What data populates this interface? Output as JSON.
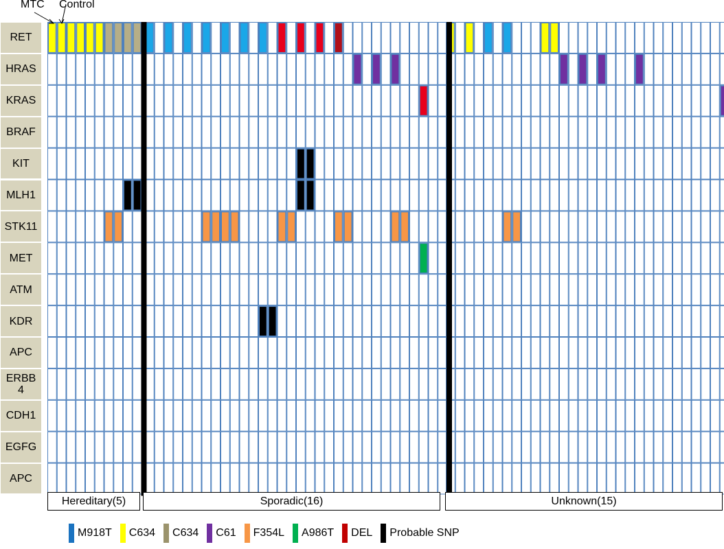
{
  "header": {
    "mtc_label": "MTC",
    "control_label": "Control"
  },
  "genes": [
    "RET",
    "HRAS",
    "KRAS",
    "BRAF",
    "KIT",
    "MLH1",
    "STK11",
    "MET",
    "ATM",
    "KDR",
    "APC",
    "ERBB 4",
    "CDH1",
    "EGFG",
    "APC"
  ],
  "groups": [
    {
      "label": "Hereditary(5)",
      "samples": 5
    },
    {
      "label": "Sporadic(16)",
      "samples": 16
    },
    {
      "label": "Unknown(15)",
      "samples": 15
    }
  ],
  "legend": [
    {
      "label": "M918T",
      "color": "#1b73c0"
    },
    {
      "label": "C634",
      "color": "#ffff00"
    },
    {
      "label": "C634",
      "color": "#9b936c"
    },
    {
      "label": "C61",
      "color": "#7030a0"
    },
    {
      "label": "F354L",
      "color": "#f79646"
    },
    {
      "label": "A986T",
      "color": "#00b050"
    },
    {
      "label": "DEL",
      "color": "#c00000"
    },
    {
      "label": "Probable SNP",
      "color": "#000000"
    }
  ],
  "chart_data": {
    "type": "heatmap",
    "description_note": "",
    "rows": [
      "RET",
      "HRAS",
      "KRAS",
      "BRAF",
      "KIT",
      "MLH1",
      "STK11",
      "MET",
      "ATM",
      "KDR",
      "APC",
      "ERBB4",
      "CDH1",
      "EGFG",
      "APC"
    ],
    "columns_per_sample": [
      "MTC",
      "Control"
    ],
    "cell_colors": {
      "yellow": "#ffff00",
      "khaki": "#b6ae87",
      "blue": "#1aa7e8",
      "red": "#e8001c",
      "darkred": "#b0101a",
      "purple": "#7030a0",
      "orange": "#f79646",
      "green": "#00b050",
      "black": "#000000"
    },
    "mutations": [
      {
        "gene": "RET",
        "group": "Hereditary(5)",
        "sample": 1,
        "columns": "both",
        "color": "yellow"
      },
      {
        "gene": "RET",
        "group": "Hereditary(5)",
        "sample": 2,
        "columns": "both",
        "color": "yellow"
      },
      {
        "gene": "RET",
        "group": "Hereditary(5)",
        "sample": 3,
        "columns": "both",
        "color": "yellow"
      },
      {
        "gene": "RET",
        "group": "Hereditary(5)",
        "sample": 4,
        "columns": "both",
        "color": "khaki"
      },
      {
        "gene": "RET",
        "group": "Hereditary(5)",
        "sample": 5,
        "columns": "both",
        "color": "khaki"
      },
      {
        "gene": "MLH1",
        "group": "Hereditary(5)",
        "sample": 5,
        "columns": "both",
        "color": "black"
      },
      {
        "gene": "STK11",
        "group": "Hereditary(5)",
        "sample": 4,
        "columns": "both",
        "color": "orange"
      },
      {
        "gene": "RET",
        "group": "Sporadic(16)",
        "sample": 1,
        "columns": "mtc",
        "color": "blue"
      },
      {
        "gene": "RET",
        "group": "Sporadic(16)",
        "sample": 2,
        "columns": "mtc",
        "color": "blue"
      },
      {
        "gene": "RET",
        "group": "Sporadic(16)",
        "sample": 3,
        "columns": "mtc",
        "color": "blue"
      },
      {
        "gene": "RET",
        "group": "Sporadic(16)",
        "sample": 4,
        "columns": "mtc",
        "color": "blue"
      },
      {
        "gene": "RET",
        "group": "Sporadic(16)",
        "sample": 5,
        "columns": "mtc",
        "color": "blue"
      },
      {
        "gene": "RET",
        "group": "Sporadic(16)",
        "sample": 6,
        "columns": "mtc",
        "color": "blue"
      },
      {
        "gene": "RET",
        "group": "Sporadic(16)",
        "sample": 7,
        "columns": "mtc",
        "color": "blue"
      },
      {
        "gene": "RET",
        "group": "Sporadic(16)",
        "sample": 8,
        "columns": "mtc",
        "color": "red"
      },
      {
        "gene": "RET",
        "group": "Sporadic(16)",
        "sample": 9,
        "columns": "mtc",
        "color": "red"
      },
      {
        "gene": "RET",
        "group": "Sporadic(16)",
        "sample": 10,
        "columns": "mtc",
        "color": "red"
      },
      {
        "gene": "RET",
        "group": "Sporadic(16)",
        "sample": 11,
        "columns": "mtc",
        "color": "darkred"
      },
      {
        "gene": "HRAS",
        "group": "Sporadic(16)",
        "sample": 12,
        "columns": "mtc",
        "color": "purple"
      },
      {
        "gene": "HRAS",
        "group": "Sporadic(16)",
        "sample": 13,
        "columns": "mtc",
        "color": "purple"
      },
      {
        "gene": "HRAS",
        "group": "Sporadic(16)",
        "sample": 14,
        "columns": "mtc",
        "color": "purple"
      },
      {
        "gene": "KRAS",
        "group": "Sporadic(16)",
        "sample": 15,
        "columns": "control",
        "color": "red"
      },
      {
        "gene": "KIT",
        "group": "Sporadic(16)",
        "sample": 9,
        "columns": "both",
        "color": "black"
      },
      {
        "gene": "MLH1",
        "group": "Sporadic(16)",
        "sample": 9,
        "columns": "both",
        "color": "black"
      },
      {
        "gene": "STK11",
        "group": "Sporadic(16)",
        "sample": 4,
        "columns": "both",
        "color": "orange"
      },
      {
        "gene": "STK11",
        "group": "Sporadic(16)",
        "sample": 5,
        "columns": "both",
        "color": "orange"
      },
      {
        "gene": "STK11",
        "group": "Sporadic(16)",
        "sample": 8,
        "columns": "both",
        "color": "orange"
      },
      {
        "gene": "STK11",
        "group": "Sporadic(16)",
        "sample": 11,
        "columns": "both",
        "color": "orange"
      },
      {
        "gene": "STK11",
        "group": "Sporadic(16)",
        "sample": 14,
        "columns": "both",
        "color": "orange"
      },
      {
        "gene": "MET",
        "group": "Sporadic(16)",
        "sample": 15,
        "columns": "control",
        "color": "green"
      },
      {
        "gene": "KDR",
        "group": "Sporadic(16)",
        "sample": 7,
        "columns": "both",
        "color": "black"
      },
      {
        "gene": "RET",
        "group": "Unknown(15)",
        "sample": 1,
        "columns": "mtc",
        "color": "yellow"
      },
      {
        "gene": "RET",
        "group": "Unknown(15)",
        "sample": 2,
        "columns": "mtc",
        "color": "yellow"
      },
      {
        "gene": "RET",
        "group": "Unknown(15)",
        "sample": 3,
        "columns": "mtc",
        "color": "blue"
      },
      {
        "gene": "RET",
        "group": "Unknown(15)",
        "sample": 4,
        "columns": "mtc",
        "color": "blue"
      },
      {
        "gene": "RET",
        "group": "Unknown(15)",
        "sample": 6,
        "columns": "both",
        "color": "yellow"
      },
      {
        "gene": "HRAS",
        "group": "Unknown(15)",
        "sample": 7,
        "columns": "mtc",
        "color": "purple"
      },
      {
        "gene": "HRAS",
        "group": "Unknown(15)",
        "sample": 8,
        "columns": "mtc",
        "color": "purple"
      },
      {
        "gene": "HRAS",
        "group": "Unknown(15)",
        "sample": 9,
        "columns": "mtc",
        "color": "purple"
      },
      {
        "gene": "HRAS",
        "group": "Unknown(15)",
        "sample": 11,
        "columns": "mtc",
        "color": "purple"
      },
      {
        "gene": "KRAS",
        "group": "Unknown(15)",
        "sample": 15,
        "columns": "control",
        "color": "purple"
      },
      {
        "gene": "STK11",
        "group": "Unknown(15)",
        "sample": 4,
        "columns": "both",
        "color": "orange"
      }
    ]
  }
}
